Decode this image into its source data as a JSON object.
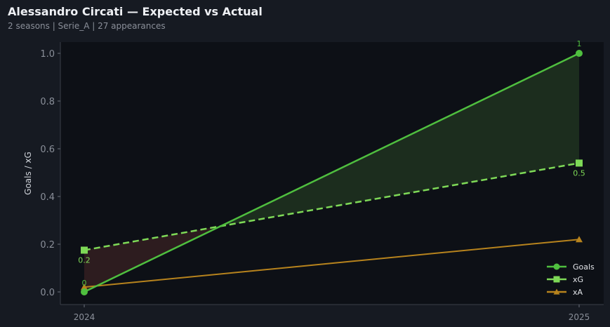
{
  "header": {
    "title": "Alessandro Circati — Expected vs Actual",
    "subtitle": "2 seasons | Serie_A | 27 appearances"
  },
  "chart_data": {
    "type": "line",
    "title": "",
    "xlabel": "",
    "ylabel": "Goals / xG",
    "categories": [
      "2024",
      "2025"
    ],
    "ylim": [
      -0.05,
      1.05
    ],
    "yticks": [
      "0.0",
      "0.2",
      "0.4",
      "0.6",
      "0.8",
      "1.0"
    ],
    "grid": false,
    "legend_position": "bottom-right",
    "series": [
      {
        "name": "Goals",
        "values": [
          0,
          1
        ],
        "labels": [
          "0",
          "1"
        ],
        "color": "#4fbf3f",
        "marker": "circle",
        "dash": false
      },
      {
        "name": "xG",
        "values": [
          0.175,
          0.54
        ],
        "labels": [
          "0.2",
          "0.5"
        ],
        "color": "#7ed957",
        "marker": "square",
        "dash": true
      },
      {
        "name": "xA",
        "values": [
          0.02,
          0.22
        ],
        "color": "#b7831d",
        "marker": "triangle",
        "dash": false
      }
    ],
    "fill_colors": {
      "over": "#1c2d1e",
      "under": "#2d1c1f"
    }
  }
}
